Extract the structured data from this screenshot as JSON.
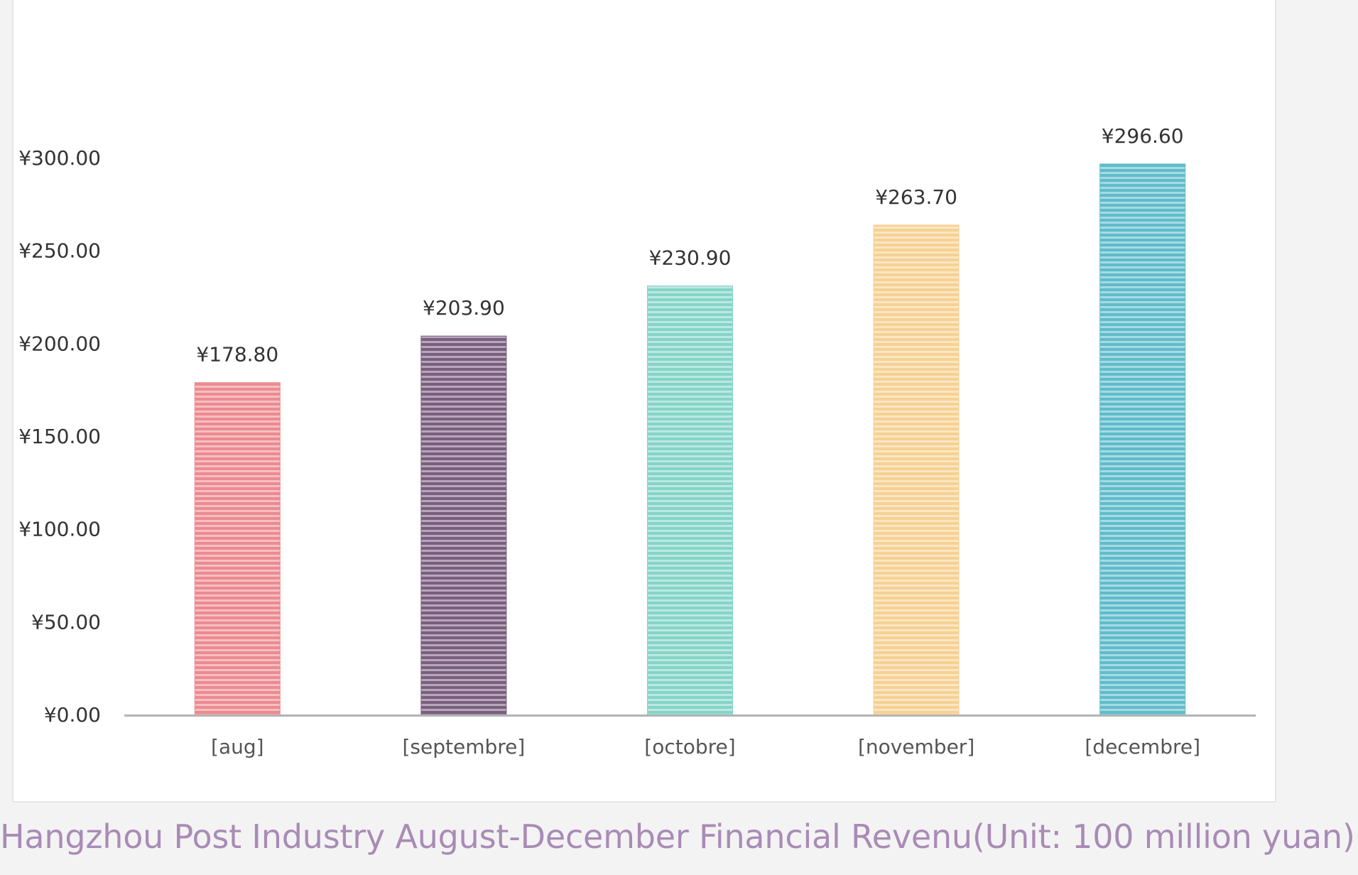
{
  "caption": "Hangzhou Post Industry August-December Financial Revenu(Unit: 100 million yuan)",
  "colors": {
    "caption": "#a98bb6",
    "axis": "#b3b3b3"
  },
  "chart_data": {
    "type": "bar",
    "categories": [
      "[aug]",
      "[septembre]",
      "[octobre]",
      "[november]",
      "[decembre]"
    ],
    "values": [
      178.8,
      203.9,
      230.9,
      263.7,
      296.6
    ],
    "data_labels": [
      "¥178.80",
      "¥203.90",
      "¥230.90",
      "¥263.70",
      "¥296.60"
    ],
    "colors": [
      "#ec8a90",
      "#7a5e7f",
      "#84d5c8",
      "#f6d193",
      "#5fbccb"
    ],
    "ylim": [
      0,
      300
    ],
    "yticks": [
      0,
      50,
      100,
      150,
      200,
      250,
      300
    ],
    "ytick_labels": [
      "¥0.00",
      "¥50.00",
      "¥100.00",
      "¥150.00",
      "¥200.00",
      "¥250.00",
      "¥300.00"
    ],
    "grid": false,
    "bar_pattern": "horizontal-stripes"
  }
}
